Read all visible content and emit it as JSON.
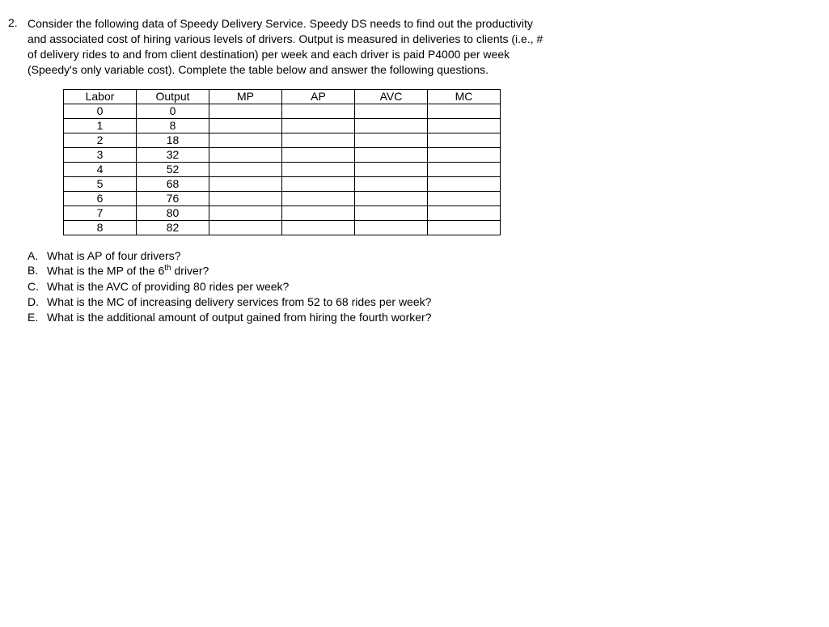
{
  "question": {
    "number": "2.",
    "text": "Consider the following data of Speedy Delivery Service. Speedy DS needs to find out the productivity and associated cost of hiring various levels of drivers. Output is measured in deliveries to clients (i.e., # of delivery rides to and from client destination) per week and each driver is paid P4000 per week (Speedy's only variable cost). Complete the table below and answer the following questions."
  },
  "table": {
    "headers": [
      "Labor",
      "Output",
      "MP",
      "AP",
      "AVC",
      "MC"
    ],
    "col_classes": [
      "col-labor",
      "col-output",
      "col-mp",
      "col-ap",
      "col-avc",
      "col-mc"
    ],
    "rows": [
      [
        "0",
        "0",
        "",
        "",
        "",
        ""
      ],
      [
        "1",
        "8",
        "",
        "",
        "",
        ""
      ],
      [
        "2",
        "18",
        "",
        "",
        "",
        ""
      ],
      [
        "3",
        "32",
        "",
        "",
        "",
        ""
      ],
      [
        "4",
        "52",
        "",
        "",
        "",
        ""
      ],
      [
        "5",
        "68",
        "",
        "",
        "",
        ""
      ],
      [
        "6",
        "76",
        "",
        "",
        "",
        ""
      ],
      [
        "7",
        "80",
        "",
        "",
        "",
        ""
      ],
      [
        "8",
        "82",
        "",
        "",
        "",
        ""
      ]
    ],
    "border_color": "#000000",
    "background_color": "#ffffff"
  },
  "sub_questions": [
    {
      "letter": "A.",
      "text": "What is AP of four drivers?"
    },
    {
      "letter": "B.",
      "text_html": "What is the MP of the 6<sup>th</sup> driver?"
    },
    {
      "letter": "C.",
      "text": "What is the AVC of providing 80 rides per week?"
    },
    {
      "letter": "D.",
      "text": "What is the MC of increasing delivery services from 52 to 68 rides per week?"
    },
    {
      "letter": "E.",
      "text": "What is the additional amount of output gained from hiring the fourth worker?"
    }
  ]
}
